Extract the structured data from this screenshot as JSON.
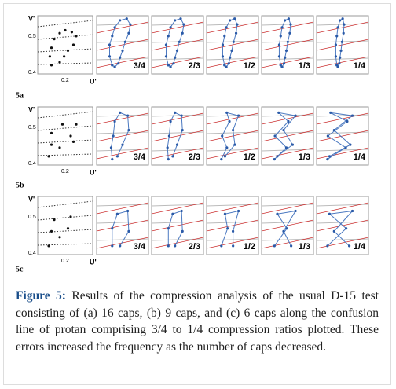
{
  "rows": [
    {
      "label": "5a",
      "axis": {
        "y_label": "V'",
        "yticks": [
          "0.5",
          "0.4"
        ],
        "xtick": "0.2",
        "x_label": "U'"
      },
      "panels": [
        "3/4",
        "2/3",
        "1/2",
        "1/3",
        "1/4"
      ]
    },
    {
      "label": "5b",
      "axis": {
        "y_label": "V'",
        "yticks": [
          "0.5",
          "0.4"
        ],
        "xtick": "0.2",
        "x_label": "U'"
      },
      "panels": [
        "3/4",
        "2/3",
        "1/2",
        "1/3",
        "1/4"
      ]
    },
    {
      "label": "5c",
      "axis": {
        "y_label": "V'",
        "yticks": [
          "0.5",
          "0.4"
        ],
        "xtick": "0.2",
        "x_label": "U'"
      },
      "panels": [
        "3/4",
        "2/3",
        "1/2",
        "1/3",
        "1/4"
      ]
    }
  ],
  "caption": {
    "label": "Figure 5:",
    "text": "Results of the compression analysis of the usual D-15 test consisting of (a) 16 caps, (b) 9 caps, and (c) 6 caps along the confusion line of protan comprising 3/4 to 1/4 compression ratios plotted. These errors increased the frequency as the number of caps decreased."
  }
}
